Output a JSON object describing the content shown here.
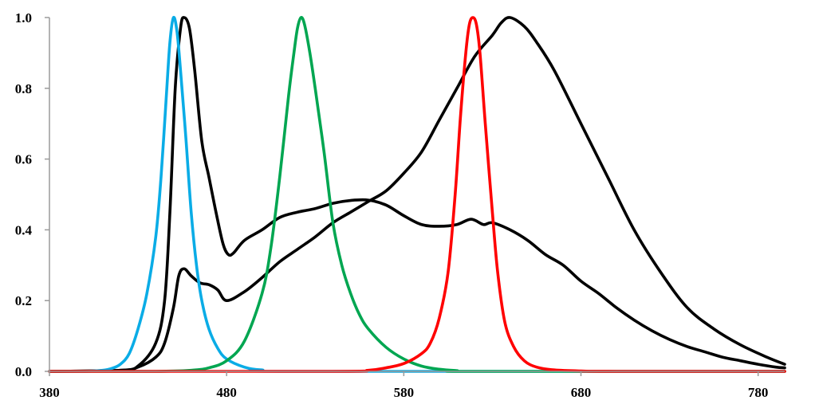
{
  "chart_data": {
    "type": "line",
    "xlim": [
      380,
      795
    ],
    "ylim": [
      0,
      1
    ],
    "x_ticks": [
      "380",
      "480",
      "580",
      "680",
      "780"
    ],
    "y_ticks": [
      "0.0",
      "0.2",
      "0.4",
      "0.6",
      "0.8",
      "1.0"
    ],
    "grid": false,
    "legend": "none",
    "series": [
      {
        "color": "#000000",
        "points": [
          [
            380,
            0
          ],
          [
            420,
            0.003
          ],
          [
            430,
            0.012
          ],
          [
            440,
            0.04
          ],
          [
            445,
            0.08
          ],
          [
            450,
            0.18
          ],
          [
            453,
            0.27
          ],
          [
            456,
            0.29
          ],
          [
            460,
            0.27
          ],
          [
            465,
            0.25
          ],
          [
            470,
            0.245
          ],
          [
            475,
            0.23
          ],
          [
            480,
            0.2
          ],
          [
            490,
            0.225
          ],
          [
            500,
            0.265
          ],
          [
            510,
            0.31
          ],
          [
            520,
            0.345
          ],
          [
            530,
            0.38
          ],
          [
            540,
            0.42
          ],
          [
            550,
            0.45
          ],
          [
            560,
            0.48
          ],
          [
            570,
            0.51
          ],
          [
            580,
            0.56
          ],
          [
            590,
            0.62
          ],
          [
            600,
            0.71
          ],
          [
            610,
            0.8
          ],
          [
            620,
            0.89
          ],
          [
            630,
            0.95
          ],
          [
            635,
            0.985
          ],
          [
            640,
            1.0
          ],
          [
            648,
            0.975
          ],
          [
            655,
            0.93
          ],
          [
            665,
            0.85
          ],
          [
            680,
            0.7
          ],
          [
            695,
            0.55
          ],
          [
            710,
            0.4
          ],
          [
            725,
            0.28
          ],
          [
            740,
            0.18
          ],
          [
            755,
            0.12
          ],
          [
            770,
            0.075
          ],
          [
            785,
            0.04
          ],
          [
            795,
            0.02
          ]
        ]
      },
      {
        "color": "#000000",
        "points": [
          [
            380,
            0
          ],
          [
            420,
            0.003
          ],
          [
            430,
            0.015
          ],
          [
            440,
            0.08
          ],
          [
            445,
            0.2
          ],
          [
            448,
            0.45
          ],
          [
            451,
            0.8
          ],
          [
            454,
            0.97
          ],
          [
            456,
            1.0
          ],
          [
            459,
            0.97
          ],
          [
            462,
            0.85
          ],
          [
            466,
            0.65
          ],
          [
            470,
            0.55
          ],
          [
            474,
            0.45
          ],
          [
            478,
            0.36
          ],
          [
            481,
            0.33
          ],
          [
            484,
            0.335
          ],
          [
            490,
            0.37
          ],
          [
            500,
            0.4
          ],
          [
            510,
            0.435
          ],
          [
            520,
            0.45
          ],
          [
            530,
            0.46
          ],
          [
            540,
            0.475
          ],
          [
            550,
            0.483
          ],
          [
            560,
            0.484
          ],
          [
            570,
            0.47
          ],
          [
            580,
            0.44
          ],
          [
            590,
            0.415
          ],
          [
            600,
            0.41
          ],
          [
            610,
            0.415
          ],
          [
            618,
            0.43
          ],
          [
            625,
            0.415
          ],
          [
            630,
            0.42
          ],
          [
            640,
            0.4
          ],
          [
            650,
            0.37
          ],
          [
            660,
            0.33
          ],
          [
            670,
            0.3
          ],
          [
            680,
            0.255
          ],
          [
            690,
            0.22
          ],
          [
            700,
            0.18
          ],
          [
            710,
            0.145
          ],
          [
            720,
            0.115
          ],
          [
            730,
            0.09
          ],
          [
            740,
            0.07
          ],
          [
            750,
            0.055
          ],
          [
            760,
            0.04
          ],
          [
            770,
            0.03
          ],
          [
            780,
            0.02
          ],
          [
            790,
            0.012
          ],
          [
            795,
            0.01
          ]
        ]
      },
      {
        "color": "#0aace6",
        "points": [
          [
            380,
            0
          ],
          [
            400,
            0
          ],
          [
            410,
            0.003
          ],
          [
            415,
            0.008
          ],
          [
            420,
            0.02
          ],
          [
            425,
            0.05
          ],
          [
            430,
            0.12
          ],
          [
            435,
            0.22
          ],
          [
            440,
            0.38
          ],
          [
            443,
            0.55
          ],
          [
            446,
            0.78
          ],
          [
            448,
            0.93
          ],
          [
            450,
            1.0
          ],
          [
            452,
            0.96
          ],
          [
            454,
            0.85
          ],
          [
            457,
            0.66
          ],
          [
            460,
            0.45
          ],
          [
            463,
            0.3
          ],
          [
            466,
            0.2
          ],
          [
            470,
            0.12
          ],
          [
            475,
            0.065
          ],
          [
            480,
            0.035
          ],
          [
            490,
            0.012
          ],
          [
            500,
            0.004
          ],
          [
            520,
            0
          ],
          [
            795,
            0
          ]
        ]
      },
      {
        "color": "#00a651",
        "points": [
          [
            380,
            0
          ],
          [
            440,
            0
          ],
          [
            460,
            0.003
          ],
          [
            470,
            0.01
          ],
          [
            480,
            0.03
          ],
          [
            490,
            0.085
          ],
          [
            500,
            0.22
          ],
          [
            505,
            0.35
          ],
          [
            510,
            0.55
          ],
          [
            515,
            0.78
          ],
          [
            518,
            0.9
          ],
          [
            520,
            0.97
          ],
          [
            522,
            1.0
          ],
          [
            524,
            0.98
          ],
          [
            527,
            0.9
          ],
          [
            530,
            0.8
          ],
          [
            535,
            0.62
          ],
          [
            540,
            0.42
          ],
          [
            545,
            0.3
          ],
          [
            550,
            0.22
          ],
          [
            555,
            0.16
          ],
          [
            560,
            0.12
          ],
          [
            570,
            0.068
          ],
          [
            580,
            0.035
          ],
          [
            590,
            0.015
          ],
          [
            600,
            0.006
          ],
          [
            610,
            0.002
          ],
          [
            620,
            0
          ],
          [
            795,
            0
          ]
        ]
      },
      {
        "color": "#ff0000",
        "points": [
          [
            380,
            0
          ],
          [
            540,
            0
          ],
          [
            560,
            0.003
          ],
          [
            570,
            0.01
          ],
          [
            580,
            0.022
          ],
          [
            590,
            0.05
          ],
          [
            595,
            0.08
          ],
          [
            600,
            0.15
          ],
          [
            605,
            0.28
          ],
          [
            609,
            0.5
          ],
          [
            612,
            0.72
          ],
          [
            615,
            0.9
          ],
          [
            617,
            0.98
          ],
          [
            619,
            1.0
          ],
          [
            621,
            0.98
          ],
          [
            623,
            0.9
          ],
          [
            626,
            0.7
          ],
          [
            630,
            0.45
          ],
          [
            633,
            0.28
          ],
          [
            637,
            0.14
          ],
          [
            642,
            0.07
          ],
          [
            648,
            0.03
          ],
          [
            655,
            0.012
          ],
          [
            665,
            0.004
          ],
          [
            680,
            0.001
          ],
          [
            700,
            0
          ],
          [
            795,
            0
          ]
        ]
      }
    ]
  }
}
